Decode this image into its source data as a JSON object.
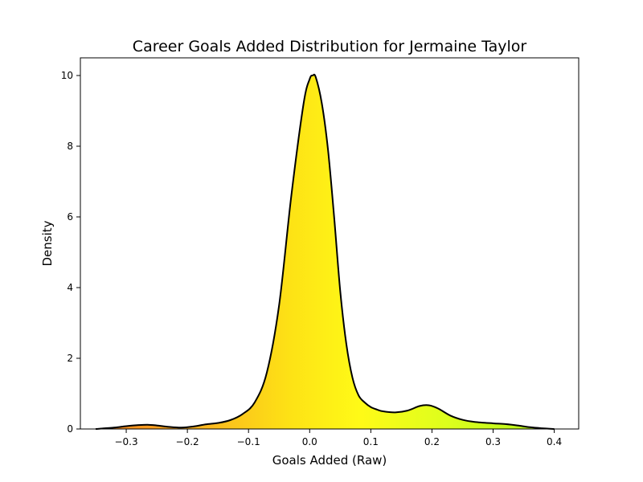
{
  "chart_data": {
    "type": "area",
    "title": "Career Goals Added Distribution for Jermaine Taylor",
    "xlabel": "Goals Added (Raw)",
    "ylabel": "Density",
    "xlim": [
      -0.375,
      0.44
    ],
    "ylim": [
      0,
      10.5
    ],
    "x_ticks": [
      -0.3,
      -0.2,
      -0.1,
      0.0,
      0.1,
      0.2,
      0.3,
      0.4
    ],
    "x_tick_labels": [
      "−0.3",
      "−0.2",
      "−0.1",
      "0.0",
      "0.1",
      "0.2",
      "0.3",
      "0.4"
    ],
    "y_ticks": [
      0,
      2,
      4,
      6,
      8,
      10
    ],
    "y_tick_labels": [
      "0",
      "2",
      "4",
      "6",
      "8",
      "10"
    ],
    "grid": false,
    "legend": "none",
    "fill_gradient": "orange-yellow-green by x",
    "line_color": "#000000",
    "series": [
      {
        "x": [
          -0.35,
          -0.32,
          -0.3,
          -0.28,
          -0.265,
          -0.25,
          -0.23,
          -0.21,
          -0.19,
          -0.17,
          -0.15,
          -0.13,
          -0.11,
          -0.09,
          -0.07,
          -0.05,
          -0.03,
          -0.01,
          0.0,
          0.005,
          0.01,
          0.02,
          0.03,
          0.04,
          0.05,
          0.06,
          0.07,
          0.08,
          0.09,
          0.1,
          0.11,
          0.12,
          0.14,
          0.16,
          0.18,
          0.195,
          0.21,
          0.23,
          0.25,
          0.27,
          0.3,
          0.32,
          0.34,
          0.36,
          0.38,
          0.4
        ],
        "y": [
          0.0,
          0.04,
          0.08,
          0.11,
          0.12,
          0.1,
          0.06,
          0.04,
          0.07,
          0.13,
          0.17,
          0.25,
          0.42,
          0.75,
          1.6,
          3.5,
          6.6,
          9.2,
          9.9,
          10.0,
          9.95,
          9.2,
          7.9,
          6.0,
          3.9,
          2.4,
          1.45,
          0.95,
          0.75,
          0.62,
          0.55,
          0.5,
          0.47,
          0.52,
          0.65,
          0.67,
          0.58,
          0.38,
          0.26,
          0.2,
          0.16,
          0.14,
          0.1,
          0.05,
          0.02,
          0.0
        ]
      }
    ]
  }
}
